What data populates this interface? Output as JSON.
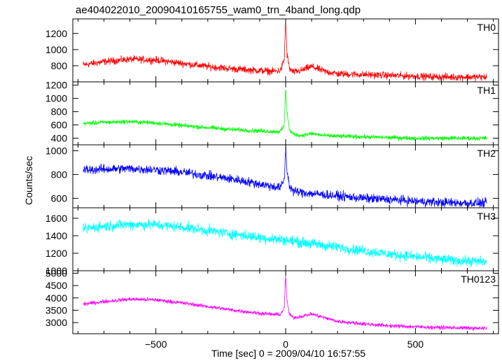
{
  "title": "ae404022010_20090410165755_wam0_trn_4band_long.qdp",
  "ylabel": "Counts/sec",
  "xlabel": "Time [sec] 0 = 2009/04/10 16:57:55",
  "chart_data": [
    {
      "type": "line",
      "name": "TH0",
      "color": "#ff0000",
      "xlim": [
        -820,
        820
      ],
      "ylim": [
        600,
        1380
      ],
      "yticks": [
        800,
        1000,
        1200
      ],
      "xticks": [
        -500,
        0,
        500
      ],
      "x": [
        -780,
        -700,
        -600,
        -500,
        -400,
        -300,
        -200,
        -100,
        -50,
        -20,
        -5,
        0,
        5,
        15,
        30,
        60,
        100,
        150,
        200,
        300,
        400,
        500,
        600,
        700,
        775
      ],
      "y": [
        810,
        850,
        880,
        870,
        830,
        790,
        760,
        740,
        730,
        740,
        880,
        1380,
        950,
        760,
        720,
        740,
        790,
        730,
        700,
        690,
        680,
        670,
        660,
        660,
        660
      ],
      "noise": 40
    },
    {
      "type": "line",
      "name": "TH1",
      "color": "#00ff00",
      "xlim": [
        -820,
        820
      ],
      "ylim": [
        300,
        1250
      ],
      "yticks": [
        400,
        600,
        800,
        1000,
        1200
      ],
      "xticks": [
        -500,
        0,
        500
      ],
      "x": [
        -780,
        -700,
        -600,
        -500,
        -400,
        -300,
        -200,
        -100,
        -50,
        -20,
        -5,
        0,
        5,
        15,
        30,
        60,
        100,
        150,
        200,
        300,
        400,
        500,
        600,
        700,
        775
      ],
      "y": [
        620,
        640,
        650,
        630,
        590,
        560,
        530,
        510,
        500,
        500,
        600,
        1180,
        800,
        520,
        460,
        440,
        470,
        440,
        430,
        420,
        410,
        400,
        400,
        400,
        400
      ],
      "noise": 30
    },
    {
      "type": "line",
      "name": "TH2",
      "color": "#0000ff",
      "xlim": [
        -820,
        820
      ],
      "ylim": [
        520,
        1050
      ],
      "yticks": [
        600,
        800,
        1000
      ],
      "xticks": [
        -500,
        0,
        500
      ],
      "x": [
        -780,
        -700,
        -600,
        -500,
        -400,
        -300,
        -200,
        -100,
        -50,
        -20,
        -5,
        0,
        5,
        15,
        30,
        60,
        100,
        150,
        200,
        300,
        400,
        500,
        600,
        700,
        775
      ],
      "y": [
        840,
        845,
        850,
        840,
        820,
        790,
        760,
        720,
        700,
        690,
        760,
        1030,
        840,
        700,
        660,
        650,
        640,
        630,
        620,
        600,
        590,
        575,
        565,
        560,
        560
      ],
      "noise": 35
    },
    {
      "type": "line",
      "name": "TH3",
      "color": "#00ffff",
      "xlim": [
        -820,
        820
      ],
      "ylim": [
        1000,
        1720
      ],
      "yticks": [
        1000,
        1200,
        1400,
        1600
      ],
      "xticks": [
        -500,
        0,
        500
      ],
      "x": [
        -780,
        -700,
        -600,
        -500,
        -400,
        -300,
        -200,
        -100,
        0,
        100,
        200,
        300,
        400,
        500,
        600,
        700,
        775
      ],
      "y": [
        1480,
        1510,
        1530,
        1525,
        1500,
        1460,
        1420,
        1380,
        1350,
        1310,
        1270,
        1230,
        1190,
        1160,
        1130,
        1110,
        1100
      ],
      "noise": 55
    },
    {
      "type": "line",
      "name": "TH0123",
      "color": "#ff00ff",
      "xlim": [
        -820,
        820
      ],
      "ylim": [
        2550,
        5100
      ],
      "yticks": [
        3000,
        3500,
        4000,
        4500,
        5000
      ],
      "xticks": [
        -500,
        0,
        500
      ],
      "x": [
        -780,
        -700,
        -600,
        -500,
        -400,
        -300,
        -200,
        -100,
        -50,
        -20,
        -5,
        0,
        5,
        15,
        30,
        60,
        100,
        150,
        200,
        300,
        400,
        500,
        600,
        700,
        775
      ],
      "y": [
        3750,
        3850,
        3950,
        3920,
        3800,
        3650,
        3500,
        3380,
        3330,
        3330,
        3600,
        4950,
        3900,
        3320,
        3200,
        3250,
        3350,
        3200,
        3050,
        2950,
        2870,
        2830,
        2800,
        2780,
        2760
      ],
      "noise": 70
    }
  ]
}
